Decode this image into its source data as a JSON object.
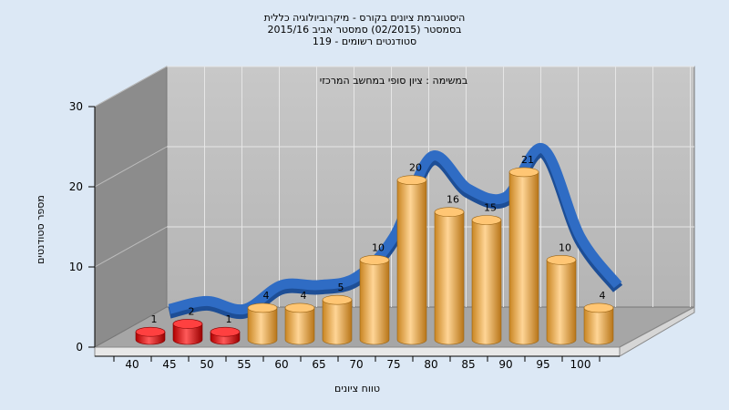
{
  "chart_data": {
    "type": "bar",
    "title_lines": [
      "היסטוגרמת ציונים בקורס - מיקרוביולוגיה כללית",
      "בסמסטר  (02/2015)  סמסטר אביב 2015/16",
      "119 - סטודנטים רשומים"
    ],
    "subtitle": "במשימה : ציון סופי במחשב המרכזי",
    "xlabel": "טווח ציונים",
    "ylabel": "מספר סטודנטים",
    "categories": [
      "40",
      "45",
      "50",
      "55",
      "60",
      "65",
      "70",
      "75",
      "80",
      "85",
      "90",
      "95",
      "100"
    ],
    "values": [
      1,
      2,
      1,
      4,
      4,
      5,
      10,
      20,
      16,
      15,
      21,
      10,
      4
    ],
    "bar_value_labels": [
      "1",
      "2",
      "1",
      "4",
      "4",
      "5",
      "10",
      "20",
      "16",
      "15",
      "21",
      "10",
      "4"
    ],
    "y_ticks": [
      "0",
      "10",
      "20",
      "30"
    ],
    "ylim": [
      0,
      30
    ],
    "grid": true,
    "colors": {
      "failing_bar": "#e01010",
      "passing_bar": "#f0a846",
      "trend_line": "#2f6cc4",
      "back_wall": "#bfbfbf",
      "side_wall": "#8c8c8c",
      "floor": "#a6a6a6"
    },
    "failing_category_count": 3
  }
}
